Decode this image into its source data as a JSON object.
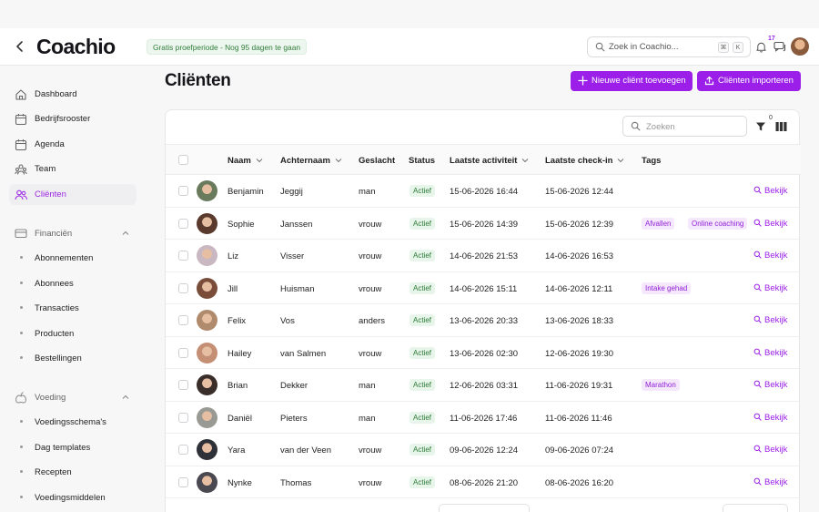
{
  "app": {
    "logo": "Coachio",
    "trial_badge": "Gratis proefperiode - Nog 95 dagen te gaan",
    "search_placeholder": "Zoek in Coachio...",
    "search_shortcut": [
      "⌘",
      "K"
    ],
    "notification_count": "17"
  },
  "sidebar": {
    "items": [
      {
        "label": "Dashboard",
        "icon": "home-icon"
      },
      {
        "label": "Bedrijfsrooster",
        "icon": "calendar-icon"
      },
      {
        "label": "Agenda",
        "icon": "calendar-icon"
      },
      {
        "label": "Team",
        "icon": "team-icon"
      },
      {
        "label": "Cliënten",
        "icon": "users-icon",
        "active": true
      }
    ],
    "finance": {
      "label": "Financiën",
      "icon": "card-icon",
      "items": [
        "Abonnementen",
        "Abonnees",
        "Transacties",
        "Producten",
        "Bestellingen"
      ]
    },
    "nutrition": {
      "label": "Voeding",
      "icon": "nutrition-icon",
      "items": [
        "Voedingsschema's",
        "Dag templates",
        "Recepten",
        "Voedingsmiddelen"
      ]
    }
  },
  "page": {
    "title": "Cliënten",
    "add_button": "Nieuwe cliënt toevoegen",
    "import_button": "Cliënten importeren",
    "table_search_placeholder": "Zoeken",
    "filter_count": "0"
  },
  "table": {
    "columns": [
      "Naam",
      "Achternaam",
      "Geslacht",
      "Status",
      "Laatste activiteit",
      "Laatste check-in",
      "Tags"
    ],
    "view_label": "Bekijk",
    "rows": [
      {
        "first": "Benjamin",
        "last": "Jeggij",
        "gender": "man",
        "status": "Actief",
        "activity": "15-06-2026 16:44",
        "checkin": "15-06-2026 12:44",
        "tags": [],
        "avatar_color": "#6a7a5c"
      },
      {
        "first": "Sophie",
        "last": "Janssen",
        "gender": "vrouw",
        "status": "Actief",
        "activity": "15-06-2026 14:39",
        "checkin": "15-06-2026 12:39",
        "tags": [
          "Afvallen",
          "Online coaching"
        ],
        "avatar_color": "#5b3a2e"
      },
      {
        "first": "Liz",
        "last": "Visser",
        "gender": "vrouw",
        "status": "Actief",
        "activity": "14-06-2026 21:53",
        "checkin": "14-06-2026 16:53",
        "tags": [],
        "avatar_color": "#c9b7c2"
      },
      {
        "first": "Jill",
        "last": "Huisman",
        "gender": "vrouw",
        "status": "Actief",
        "activity": "14-06-2026 15:11",
        "checkin": "14-06-2026 12:11",
        "tags": [
          "Intake gehad"
        ],
        "avatar_color": "#7a4d3b"
      },
      {
        "first": "Felix",
        "last": "Vos",
        "gender": "anders",
        "status": "Actief",
        "activity": "13-06-2026 20:33",
        "checkin": "13-06-2026 18:33",
        "tags": [],
        "avatar_color": "#b08a6c"
      },
      {
        "first": "Hailey",
        "last": "van Salmen",
        "gender": "vrouw",
        "status": "Actief",
        "activity": "13-06-2026 02:30",
        "checkin": "12-06-2026 19:30",
        "tags": [],
        "avatar_color": "#c48f74"
      },
      {
        "first": "Brian",
        "last": "Dekker",
        "gender": "man",
        "status": "Actief",
        "activity": "12-06-2026 03:31",
        "checkin": "11-06-2026 19:31",
        "tags": [
          "Marathon"
        ],
        "avatar_color": "#3a2e2a"
      },
      {
        "first": "Daniël",
        "last": "Pieters",
        "gender": "man",
        "status": "Actief",
        "activity": "11-06-2026 17:46",
        "checkin": "11-06-2026 11:46",
        "tags": [],
        "avatar_color": "#9a9a94"
      },
      {
        "first": "Yara",
        "last": "van der Veen",
        "gender": "vrouw",
        "status": "Actief",
        "activity": "09-06-2026 12:24",
        "checkin": "09-06-2026 07:24",
        "tags": [],
        "avatar_color": "#2e3238"
      },
      {
        "first": "Nynke",
        "last": "Thomas",
        "gender": "vrouw",
        "status": "Actief",
        "activity": "08-06-2026 21:20",
        "checkin": "08-06-2026 16:20",
        "tags": [],
        "avatar_color": "#4a4850"
      }
    ]
  },
  "colors": {
    "accent": "#9b1fe8",
    "status_bg": "#e8f5ea",
    "status_text": "#2b7a36"
  }
}
